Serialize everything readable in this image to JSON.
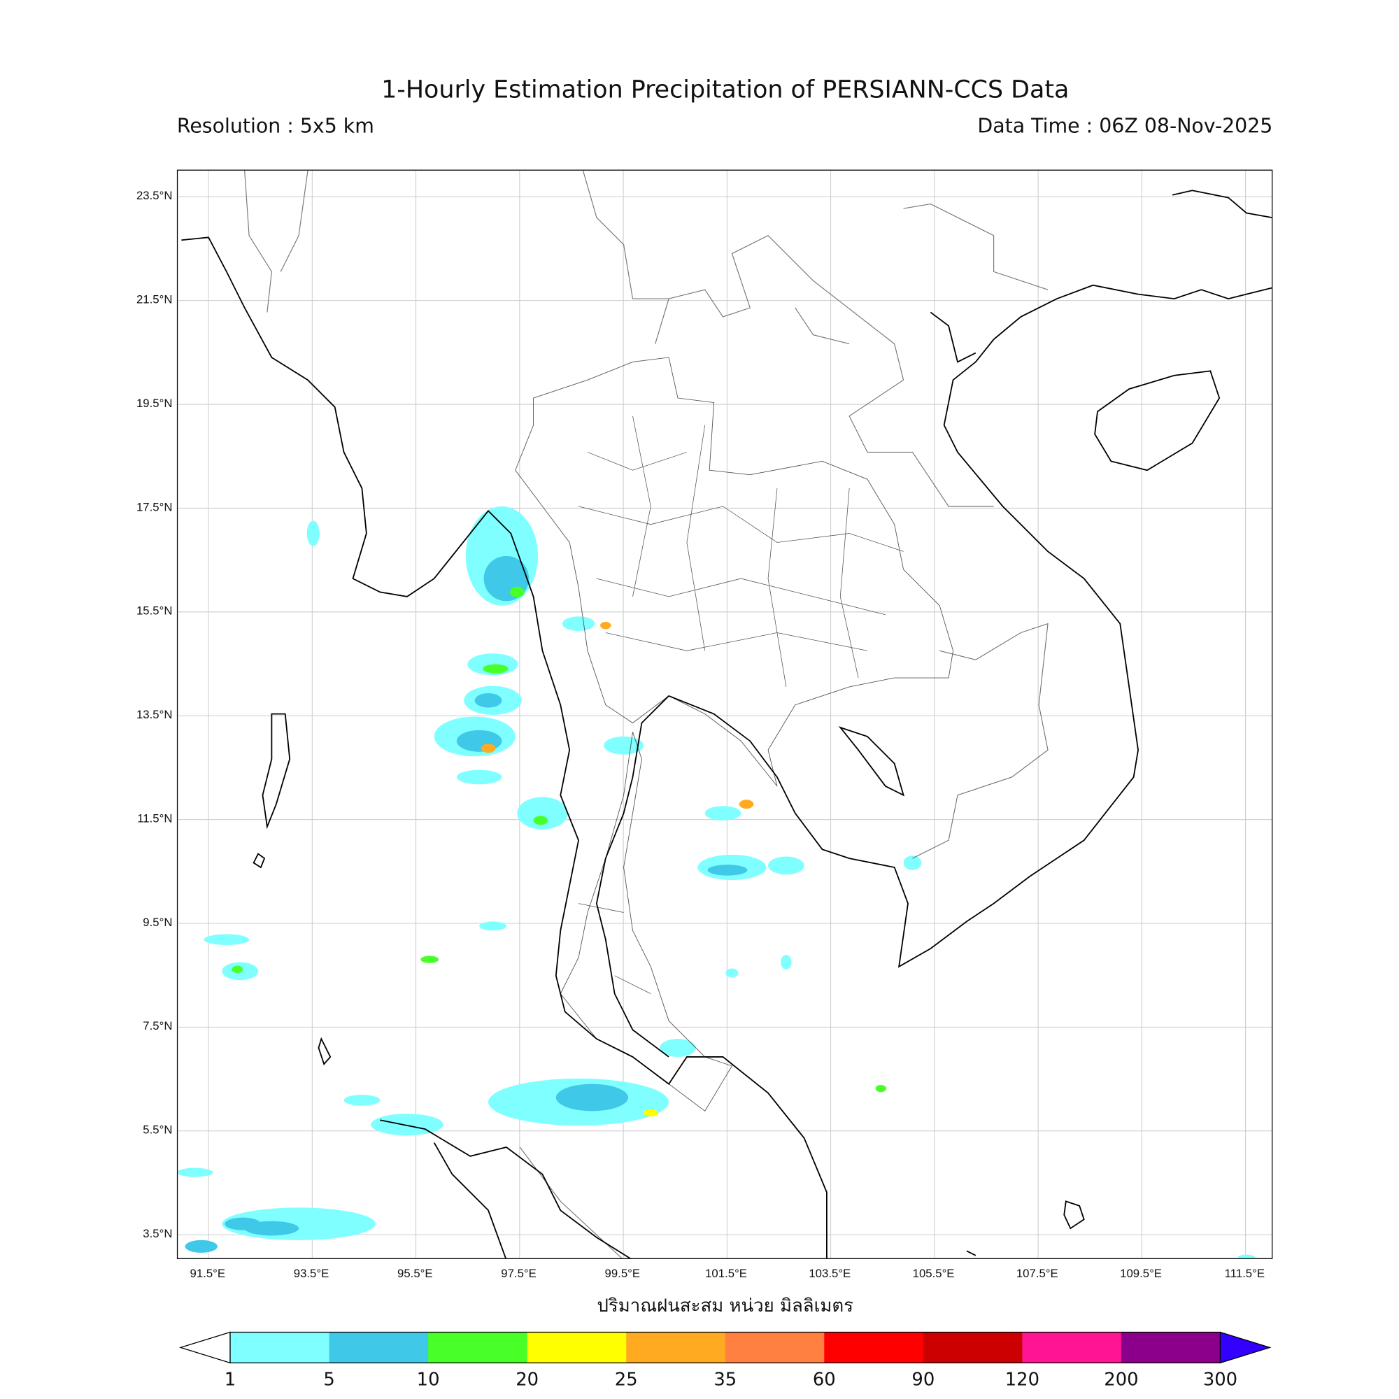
{
  "title": "1-Hourly Estimation Precipitation of PERSIANN-CCS Data",
  "resolution": "Resolution : 5x5 km",
  "data_time": "Data Time : 06Z 08-Nov-2025",
  "lat_labels": [
    "23.5°N",
    "21.5°N",
    "19.5°N",
    "17.5°N",
    "15.5°N",
    "13.5°N",
    "11.5°N",
    "9.5°N",
    "7.5°N",
    "5.5°N",
    "3.5°N"
  ],
  "lon_labels": [
    "91.5°E",
    "93.5°E",
    "95.5°E",
    "97.5°E",
    "99.5°E",
    "101.5°E",
    "103.5°E",
    "105.5°E",
    "107.5°E",
    "109.5°E",
    "111.5°E"
  ],
  "unit_label": "ปริมาณฝนสะสม หน่วย มิลลิเมตร",
  "colorbar": {
    "levels": [
      "1",
      "5",
      "10",
      "20",
      "25",
      "35",
      "60",
      "90",
      "120",
      "200",
      "300"
    ],
    "colors": [
      "#7fffff",
      "#40c8e8",
      "#48ff28",
      "#ffff00",
      "#ffaa20",
      "#ff8040",
      "#ff0000",
      "#cc0000",
      "#ff1493",
      "#8b008b"
    ],
    "over_color": "#3300ff",
    "under_color": "#ffffff"
  },
  "map_extent": {
    "lon": [
      90.9,
      112.0
    ],
    "lat": [
      3.0,
      24.0
    ]
  }
}
